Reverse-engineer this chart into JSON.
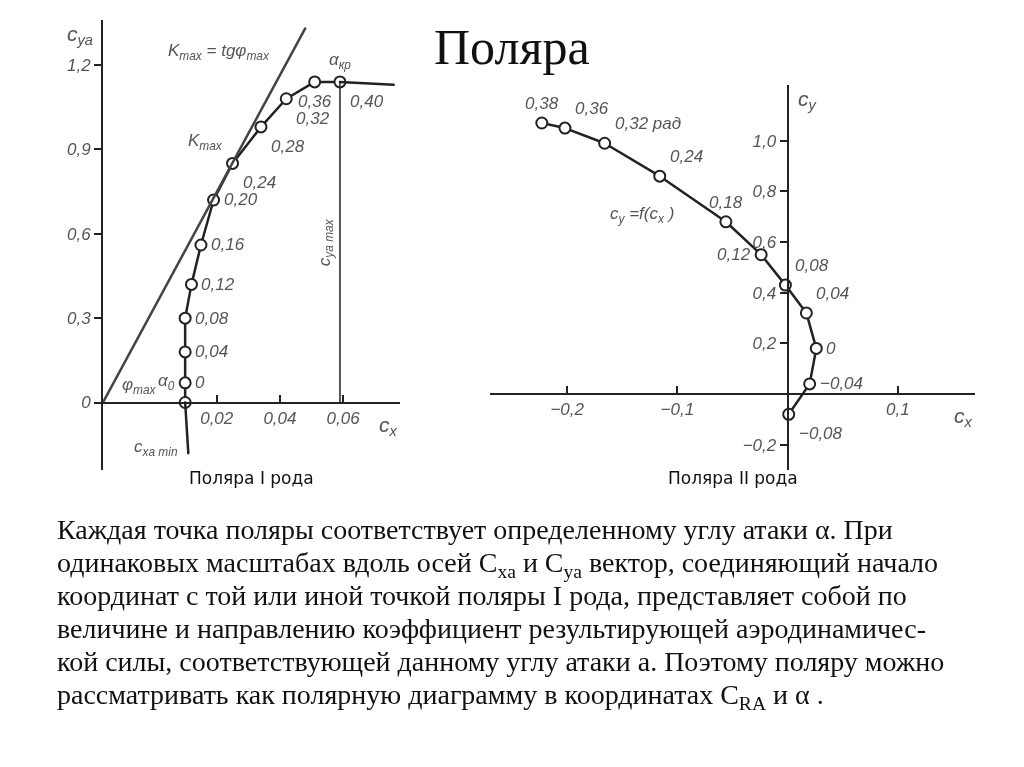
{
  "chart_data": [
    {
      "type": "other",
      "title": "Поляра"
    },
    {
      "type": "line",
      "xlabel": "c$_{x}$",
      "ylabel": "c$_{ya}$",
      "marker": "circle",
      "xlim": [
        -0.016,
        0.078
      ],
      "ylim": [
        -0.24,
        1.36
      ],
      "xticks": [
        {
          "value": 0.02,
          "label": "0,02"
        },
        {
          "value": 0.04,
          "label": "0,04"
        },
        {
          "value": 0.06,
          "label": "0,06"
        }
      ],
      "yticks": [
        {
          "value": 0,
          "label": "0"
        },
        {
          "value": 0.3,
          "label": "0,3"
        },
        {
          "value": 0.6,
          "label": "0,6"
        },
        {
          "value": 0.9,
          "label": "0,9"
        },
        {
          "value": 1.2,
          "label": "1,2"
        }
      ],
      "series": [
        {
          "color": "#222222",
          "x": [
            0.01,
            0.01,
            0.01,
            0.01,
            0.012,
            0.015,
            0.019,
            0.025,
            0.034,
            0.042,
            0.051,
            0.059
          ],
          "values": [
            0,
            0.07,
            0.18,
            0.3,
            0.42,
            0.56,
            0.72,
            0.85,
            0.98,
            1.08,
            1.14,
            1.14
          ]
        },
        {
          "color": "#222222",
          "marker": "none",
          "x": [
            0.011,
            0.01
          ],
          "values": [
            -0.18,
            0
          ]
        },
        {
          "color": "#222222",
          "marker": "none",
          "x": [
            0.059,
            0.076
          ],
          "values": [
            1.14,
            1.13
          ]
        },
        {
          "color": "#444444",
          "marker": "none",
          "x": [
            -0.016,
            0.048
          ],
          "values": [
            0,
            1.33
          ]
        }
      ],
      "ref_lines": [
        {
          "axis": "x",
          "value": 0.059,
          "label": "c$_{ya max}$"
        }
      ],
      "annotations": [
        {
          "text": "0",
          "x": 0.01,
          "y": 0.07
        },
        {
          "text": "0,04",
          "x": 0.01,
          "y": 0.18
        },
        {
          "text": "0,08",
          "x": 0.01,
          "y": 0.3
        },
        {
          "text": "0,12",
          "x": 0.012,
          "y": 0.42
        },
        {
          "text": "0,16",
          "x": 0.015,
          "y": 0.56
        },
        {
          "text": "0,20",
          "x": 0.019,
          "y": 0.72
        },
        {
          "text": "0,24",
          "x": 0.025,
          "y": 0.85
        },
        {
          "text": "0,28",
          "x": 0.034,
          "y": 0.98
        },
        {
          "text": "0,32",
          "x": 0.042,
          "y": 1.08
        },
        {
          "text": "0,36",
          "x": 0.051,
          "y": 1.14
        },
        {
          "text": "0,40",
          "x": 0.059,
          "y": 1.14
        },
        {
          "text": "α$_{кр}$",
          "x": 0.059,
          "y": 1.14
        },
        {
          "text": "K$_{max}$ = tgφ$_{max}$",
          "x": 0.04,
          "y": 1.17
        },
        {
          "text": "K$_{max}$",
          "x": 0.025,
          "y": 0.85
        },
        {
          "text": "α$_{0}$",
          "x": 0.01,
          "y": 0
        },
        {
          "text": "φ$_{max}$",
          "x": -0.013,
          "y": 0.06
        },
        {
          "text": "c$_{xa min}$",
          "x": 0.011,
          "y": -0.16
        },
        "Поляра I рода"
      ]
    },
    {
      "type": "line",
      "xlabel": "c$_{x}$",
      "ylabel": "c$_{y}$",
      "marker": "circle",
      "xlim": [
        -0.27,
        0.17
      ],
      "ylim": [
        -0.3,
        1.22
      ],
      "xticks": [
        {
          "value": -0.2,
          "label": "−0,2"
        },
        {
          "value": -0.1,
          "label": "−0,1"
        },
        {
          "value": 0.1,
          "label": "0,1"
        }
      ],
      "yticks": [
        {
          "value": -0.2,
          "label": "−0,2"
        },
        {
          "value": 0.2,
          "label": "0,2"
        },
        {
          "value": 0.4,
          "label": "0,4"
        },
        {
          "value": 0.6,
          "label": "0,6"
        },
        {
          "value": 0.8,
          "label": "0,8"
        },
        {
          "value": 1.0,
          "label": "1,0"
        }
      ],
      "series": [
        {
          "color": "#222222",
          "x": [
            0.001,
            0.02,
            0.026,
            0.017,
            -0.002,
            -0.024,
            -0.056,
            -0.116,
            -0.166,
            -0.202,
            -0.223
          ],
          "values": [
            -0.08,
            0.04,
            0.18,
            0.32,
            0.43,
            0.55,
            0.68,
            0.86,
            0.99,
            1.05,
            1.07
          ]
        }
      ],
      "annotations": [
        {
          "text": "−0,08",
          "x": 0.001,
          "y": -0.08
        },
        {
          "text": "−0,04",
          "x": 0.02,
          "y": 0.04
        },
        {
          "text": "0",
          "x": 0.026,
          "y": 0.18
        },
        {
          "text": "0,04",
          "x": 0.017,
          "y": 0.32
        },
        {
          "text": "0,08",
          "x": -0.002,
          "y": 0.43
        },
        {
          "text": "0,12",
          "x": -0.024,
          "y": 0.55
        },
        {
          "text": "0,18",
          "x": -0.056,
          "y": 0.68
        },
        {
          "text": "0,24",
          "x": -0.116,
          "y": 0.86
        },
        {
          "text": "0,32 рад",
          "x": -0.166,
          "y": 0.99
        },
        {
          "text": "0,36",
          "x": -0.202,
          "y": 1.05
        },
        {
          "text": "0,38",
          "x": -0.223,
          "y": 1.07
        },
        {
          "text": "c$_{y}$ =f(c$_{x}$ )",
          "x": -0.094,
          "y": 0.79
        },
        "Поляра II рода"
      ]
    },
    {
      "type": "other",
      "annotations": [
        "Каждая точка поляры соответствует определенному углу атаки α. При\nодинаковых масштабах вдоль осей C$_{xa}$ и C$_{ya}$ вектор, соединяющий начало\nкоординат с той или иной точкой поляры I рода, представляет собой по\nвеличине и направлению коэффициент результирующей аэродинамичес-\nкой силы, соответствующей данному углу атаки а. Поэтому поляру можно\nрассматривать как полярную диаграмму в координатах C$_{RA}$ и α ."
      ]
    }
  ]
}
